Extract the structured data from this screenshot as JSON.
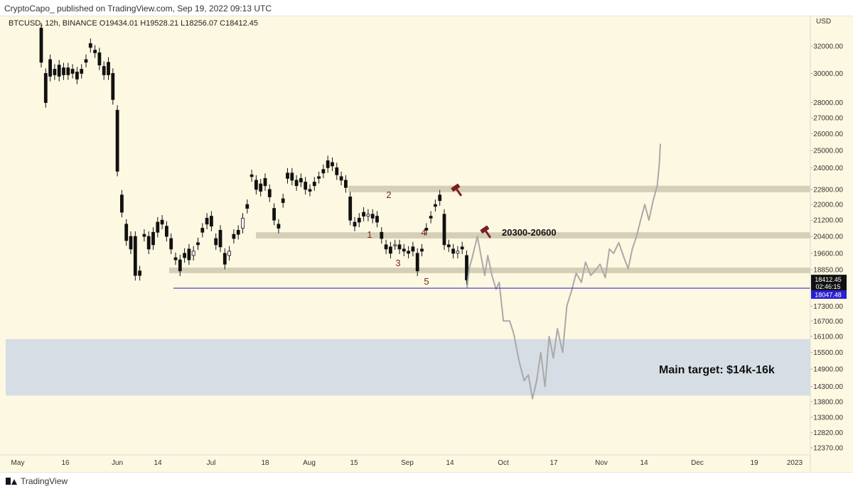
{
  "header": {
    "publisher": "CryptoCapo_ published on TradingView.com, Sep 19, 2022 09:13 UTC"
  },
  "legend": {
    "symbol_line": "BTCUSD, 12h, BINANCE  O19434.01  H19528.21  L18256.07  C18412.45"
  },
  "footer": {
    "brand": "TradingView"
  },
  "colors": {
    "background": "#fdf8e1",
    "zone": "#d6cfb8",
    "target_zone": "#d7dde5",
    "candle": "#111111",
    "projection": "#a9a9a9",
    "support_line": "#3a34c8",
    "marker": "#7a1f1f",
    "price_tag": "#111111",
    "support_tag": "#2a20d0"
  },
  "chart_data": {
    "type": "candlestick",
    "symbol": "BTCUSD",
    "interval": "12h",
    "exchange": "BINANCE",
    "currency": "USD",
    "last": {
      "open": 19434.01,
      "high": 19528.21,
      "low": 18256.07,
      "close": 18412.45
    },
    "y_axis": {
      "label": "USD",
      "scale": "log",
      "ticks": [
        "32000.00",
        "30000.00",
        "28000.00",
        "27000.00",
        "26000.00",
        "25000.00",
        "24000.00",
        "22800.00",
        "22000.00",
        "21200.00",
        "20400.00",
        "19600.00",
        "18850.00",
        "17300.00",
        "16700.00",
        "16100.00",
        "15500.00",
        "14900.00",
        "14300.00",
        "13800.00",
        "13300.00",
        "12820.00",
        "12370.00"
      ]
    },
    "x_axis": {
      "ticks": [
        "May",
        "16",
        "Jun",
        "14",
        "Jul",
        "18",
        "Aug",
        "15",
        "Sep",
        "14",
        "Oct",
        "17",
        "Nov",
        "14",
        "Dec",
        "19",
        "2023"
      ]
    },
    "price_tags": {
      "last": "18412.45",
      "countdown": "02:46:15",
      "support": "18047.48"
    },
    "zones": [
      {
        "low": 22650,
        "high": 23000
      },
      {
        "low": 20300,
        "high": 20600
      },
      {
        "low": 18700,
        "high": 18950
      }
    ],
    "target_zone": {
      "low": 14000,
      "high": 16000
    },
    "support_line": 18047.48,
    "wave_labels": [
      "1",
      "2",
      "3",
      "4",
      "5"
    ],
    "annotations": {
      "resistance": "20300-20600",
      "target": "Main target: $14k-16k"
    },
    "projection_path": [
      [
        17.5,
        18047
      ],
      [
        17.7,
        18900
      ],
      [
        18,
        19400
      ],
      [
        18.5,
        20400
      ],
      [
        18.8,
        19600
      ],
      [
        19.2,
        18600
      ],
      [
        19.5,
        19500
      ],
      [
        19.9,
        18600
      ],
      [
        20.3,
        18000
      ],
      [
        20.6,
        18300
      ],
      [
        21,
        16700
      ],
      [
        21.6,
        16700
      ],
      [
        22,
        16200
      ],
      [
        22.5,
        15200
      ],
      [
        23,
        14500
      ],
      [
        23.4,
        14700
      ],
      [
        23.8,
        13900
      ],
      [
        24.2,
        14500
      ],
      [
        24.6,
        15500
      ],
      [
        25,
        14300
      ],
      [
        25.4,
        16100
      ],
      [
        25.8,
        15300
      ],
      [
        26.2,
        16400
      ],
      [
        26.7,
        15500
      ],
      [
        27.1,
        17300
      ],
      [
        27.6,
        18000
      ],
      [
        28,
        18700
      ],
      [
        28.5,
        18300
      ],
      [
        28.9,
        19200
      ],
      [
        29.4,
        18600
      ],
      [
        29.8,
        18800
      ],
      [
        30.3,
        19100
      ],
      [
        30.8,
        18500
      ],
      [
        31.2,
        19800
      ],
      [
        31.6,
        19600
      ],
      [
        32.1,
        20100
      ],
      [
        32.6,
        19400
      ],
      [
        33,
        18900
      ],
      [
        33.4,
        19800
      ],
      [
        33.8,
        20400
      ],
      [
        34.2,
        21200
      ],
      [
        34.6,
        22000
      ],
      [
        35,
        21200
      ],
      [
        35.4,
        22200
      ],
      [
        35.8,
        23000
      ],
      [
        36,
        24200
      ],
      [
        36.1,
        25400
      ]
    ],
    "candles": [
      [
        0,
        33400,
        30800
      ],
      [
        1,
        30000,
        28000
      ],
      [
        2,
        31000,
        29800
      ],
      [
        3,
        30300,
        29900
      ],
      [
        4,
        30600,
        29800
      ],
      [
        5,
        30400,
        29900
      ],
      [
        6,
        30400,
        29900
      ],
      [
        7,
        30300,
        30000
      ],
      [
        8,
        30100,
        29600
      ],
      [
        9,
        30300,
        30000
      ],
      [
        10,
        31000,
        30800
      ],
      [
        11,
        32200,
        31900
      ],
      [
        12,
        31700,
        31500
      ],
      [
        13,
        31500,
        30600
      ],
      [
        14,
        30500,
        29900
      ],
      [
        15,
        30800,
        29900
      ],
      [
        16,
        30000,
        28200
      ],
      [
        17,
        27500,
        23800
      ],
      [
        18,
        22500,
        21600
      ],
      [
        19,
        21000,
        20200
      ],
      [
        20,
        20400,
        19800
      ],
      [
        21,
        20400,
        18600
      ],
      [
        22,
        18800,
        18600
      ],
      [
        23,
        20500,
        20400
      ],
      [
        24,
        20400,
        19800
      ],
      [
        25,
        20600,
        20000
      ],
      [
        26,
        21100,
        20600
      ],
      [
        27,
        21200,
        21000
      ],
      [
        28,
        20900,
        20400
      ],
      [
        29,
        20300,
        19800
      ],
      [
        30,
        19400,
        19300
      ],
      [
        31,
        19300,
        18800
      ],
      [
        32,
        19600,
        19400
      ],
      [
        33,
        19800,
        19300
      ],
      [
        34,
        19500,
        19700
      ],
      [
        35,
        20100,
        20000
      ],
      [
        36,
        20800,
        20600
      ],
      [
        37,
        21300,
        21000
      ],
      [
        38,
        21400,
        20900
      ],
      [
        39,
        20300,
        20000
      ],
      [
        40,
        20700,
        19900
      ],
      [
        41,
        19600,
        19100
      ],
      [
        42,
        19500,
        19700
      ],
      [
        43,
        20500,
        20300
      ],
      [
        44,
        20700,
        20500
      ],
      [
        45,
        20800,
        21300
      ],
      [
        46,
        22000,
        21800
      ],
      [
        47,
        23600,
        23500
      ],
      [
        48,
        23300,
        22800
      ],
      [
        49,
        23100,
        22700
      ],
      [
        50,
        23400,
        23000
      ],
      [
        51,
        22800,
        22400
      ],
      [
        52,
        21800,
        21200
      ],
      [
        53,
        21000,
        20800
      ],
      [
        54,
        22300,
        22100
      ],
      [
        55,
        23700,
        23400
      ],
      [
        56,
        23700,
        23300
      ],
      [
        57,
        23300,
        23000
      ],
      [
        58,
        23400,
        23200
      ],
      [
        59,
        23200,
        22800
      ],
      [
        60,
        22800,
        22700
      ],
      [
        61,
        23200,
        23000
      ],
      [
        62,
        23500,
        23400
      ],
      [
        63,
        23900,
        23700
      ],
      [
        64,
        24400,
        24000
      ],
      [
        65,
        24300,
        24100
      ],
      [
        66,
        24000,
        23600
      ],
      [
        67,
        23500,
        23300
      ],
      [
        68,
        23300,
        22900
      ],
      [
        69,
        22400,
        21200
      ],
      [
        70,
        21100,
        20900
      ],
      [
        71,
        21300,
        21100
      ],
      [
        72,
        21600,
        21400
      ],
      [
        73,
        21400,
        21500
      ],
      [
        74,
        21500,
        21300
      ],
      [
        75,
        21400,
        21100
      ],
      [
        76,
        20600,
        20300
      ],
      [
        77,
        20000,
        19800
      ],
      [
        78,
        19900,
        19600
      ],
      [
        79,
        20000,
        20000
      ],
      [
        80,
        20000,
        19800
      ],
      [
        81,
        19800,
        19700
      ],
      [
        82,
        19700,
        19600
      ],
      [
        83,
        19900,
        19700
      ],
      [
        84,
        19600,
        18800
      ],
      [
        85,
        19800,
        19700
      ],
      [
        86,
        20800,
        20700
      ],
      [
        87,
        21400,
        21300
      ],
      [
        88,
        22000,
        21900
      ],
      [
        89,
        22500,
        22200
      ],
      [
        90,
        21500,
        20000
      ],
      [
        91,
        20000,
        19900
      ],
      [
        92,
        19800,
        19600
      ],
      [
        93,
        19600,
        19700
      ],
      [
        94,
        19900,
        19800
      ],
      [
        95,
        19500,
        18400
      ]
    ]
  }
}
